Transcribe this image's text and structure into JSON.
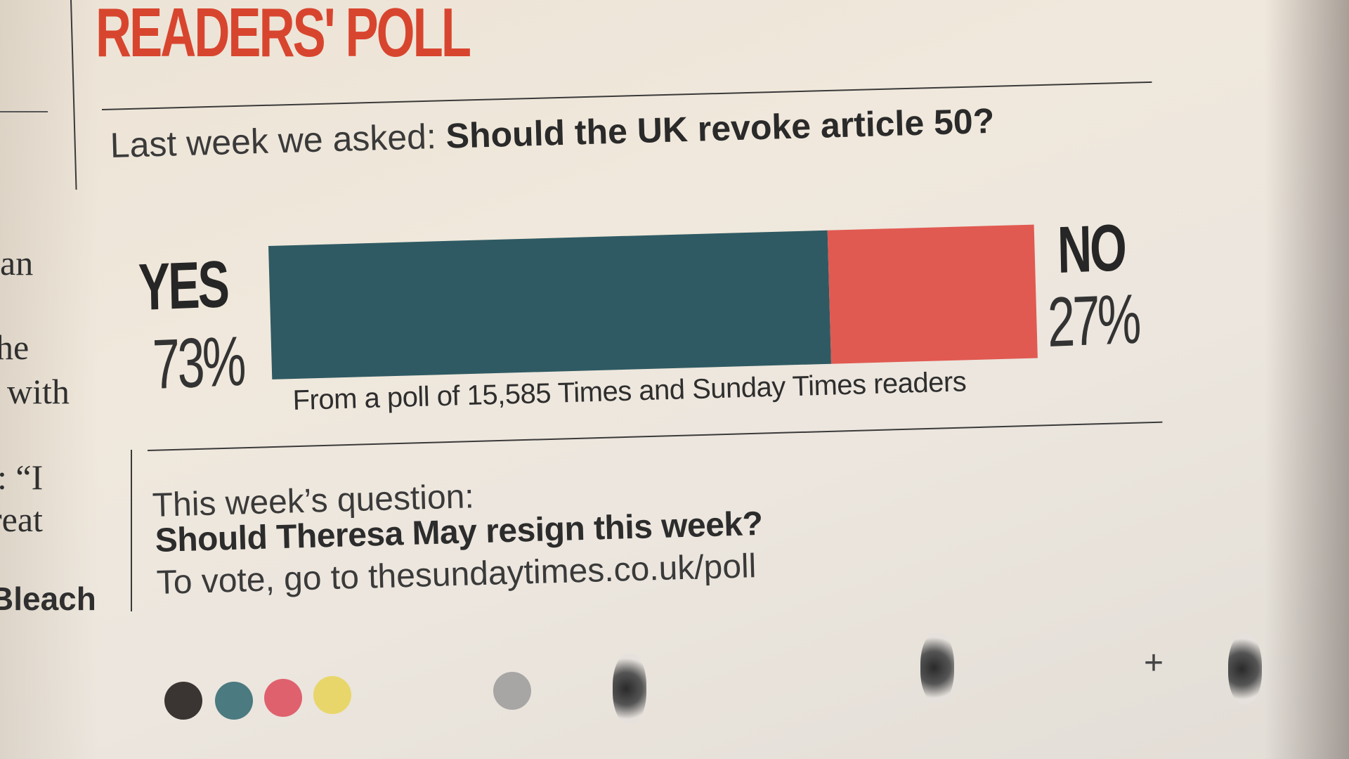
{
  "title": "READERS' POLL",
  "last_week": {
    "prefix": "Last week we asked:",
    "question": "Should the UK revoke article 50?"
  },
  "chart_data": {
    "type": "bar",
    "orientation": "horizontal-stacked",
    "categories": [
      "YES",
      "NO"
    ],
    "values": [
      73,
      27
    ],
    "value_labels": [
      "73%",
      "27%"
    ],
    "colors": [
      "#2f5a63",
      "#e05a52"
    ],
    "note": "From a poll of 15,585 Times and Sunday Times readers"
  },
  "this_week": {
    "label": "This week’s question:",
    "question": "Should Theresa May resign this week?",
    "vote": "To vote, go to thesundaytimes.co.uk/poll"
  },
  "left_column_fragments": [
    "an",
    "he",
    "with",
    ": “I",
    "reat",
    "Bleach"
  ],
  "print_marks": {
    "dot_colors": [
      "#3a3532",
      "#4b7a80",
      "#e0616e",
      "#e8d66a",
      "#a8a6a4"
    ]
  }
}
